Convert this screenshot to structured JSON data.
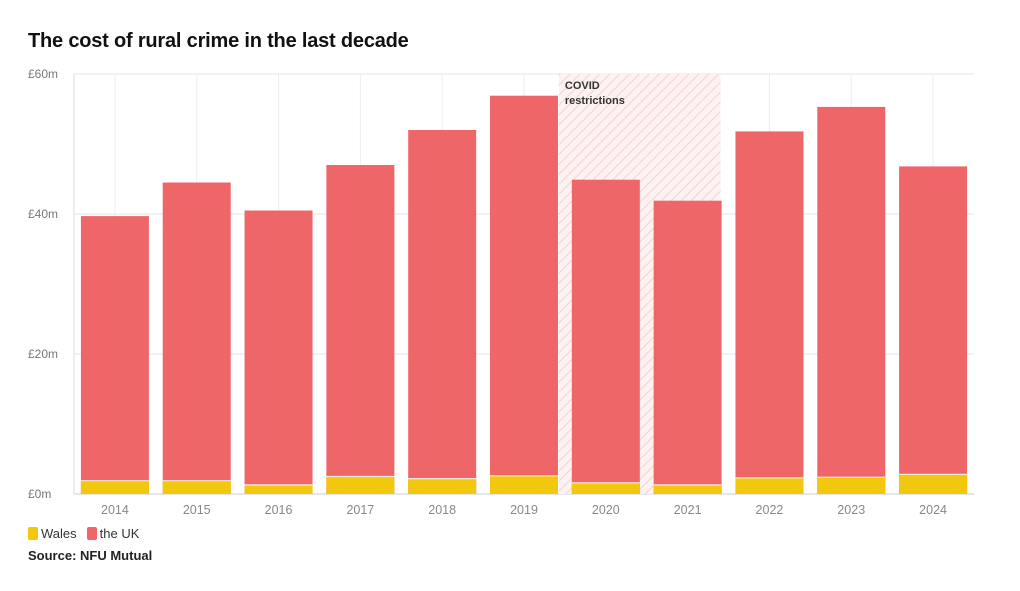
{
  "colors": {
    "wales": "#f2c80f",
    "uk": "#ef6669",
    "grid": "#e6e6e6",
    "axis_text": "#888888",
    "covid_hatch": "#f6c7c7",
    "covid_bg": "#fdf1f1"
  },
  "chart_data": {
    "type": "bar",
    "stacked": false,
    "overlapping": true,
    "title": "The cost of rural crime in the last decade",
    "xlabel": "",
    "ylabel": "",
    "ylim": [
      0,
      60
    ],
    "y_ticks": [
      0,
      20,
      40,
      60
    ],
    "y_tick_labels": [
      "£0m",
      "£20m",
      "£40m",
      "£60m"
    ],
    "categories": [
      "2014",
      "2015",
      "2016",
      "2017",
      "2018",
      "2019",
      "2020",
      "2021",
      "2022",
      "2023",
      "2024"
    ],
    "series": [
      {
        "name": "the UK",
        "values": [
          39.7,
          44.5,
          40.5,
          47.0,
          52.0,
          56.9,
          44.9,
          41.9,
          51.8,
          55.3,
          46.8
        ]
      },
      {
        "name": "Wales",
        "values": [
          1.9,
          1.9,
          1.3,
          2.5,
          2.2,
          2.6,
          1.6,
          1.3,
          2.3,
          2.4,
          2.8
        ]
      }
    ],
    "annotation": {
      "label_line1": "COVID",
      "label_line2": "restrictions",
      "from": "2020",
      "to": "2021"
    },
    "legend": [
      "Wales",
      "the UK"
    ],
    "source": "Source: NFU Mutual"
  }
}
